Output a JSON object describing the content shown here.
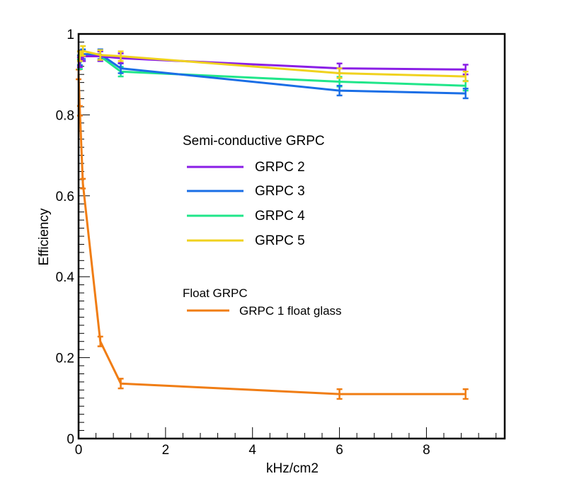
{
  "chart_data": {
    "type": "line",
    "xlabel": "kHz/cm2",
    "ylabel": "Efficiency",
    "xlim": [
      0,
      9.8
    ],
    "ylim": [
      0,
      1
    ],
    "xticks": [
      0,
      2,
      4,
      6,
      8
    ],
    "xtick_labels": [
      "0",
      "2",
      "4",
      "6",
      "8"
    ],
    "yticks": [
      0,
      0.2,
      0.4,
      0.6,
      0.8,
      1
    ],
    "ytick_labels": [
      "0",
      "0.2",
      "0.4",
      "0.6",
      "0.8",
      "1"
    ],
    "grid": false,
    "legend_groups": [
      {
        "title": "Semi-conductive GRPC",
        "entries": [
          "GRPC 2",
          "GRPC 3",
          "GRPC 4",
          "GRPC 5"
        ]
      },
      {
        "title": "Float GRPC",
        "entries": [
          "GRPC 1 float glass"
        ]
      }
    ],
    "series": [
      {
        "name": "GRPC 2",
        "color": "#8a1ee6",
        "points": [
          {
            "x": 0.03,
            "y": 0.93,
            "err": 0.012
          },
          {
            "x": 0.1,
            "y": 0.945,
            "err": 0.012
          },
          {
            "x": 0.5,
            "y": 0.945,
            "err": 0.012
          },
          {
            "x": 0.97,
            "y": 0.94,
            "err": 0.012
          },
          {
            "x": 6.0,
            "y": 0.915,
            "err": 0.012
          },
          {
            "x": 8.9,
            "y": 0.912,
            "err": 0.012
          }
        ]
      },
      {
        "name": "GRPC 3",
        "color": "#1a6ee6",
        "points": [
          {
            "x": 0.03,
            "y": 0.935,
            "err": 0.012
          },
          {
            "x": 0.1,
            "y": 0.95,
            "err": 0.012
          },
          {
            "x": 0.5,
            "y": 0.95,
            "err": 0.012
          },
          {
            "x": 0.97,
            "y": 0.915,
            "err": 0.012
          },
          {
            "x": 6.0,
            "y": 0.86,
            "err": 0.012
          },
          {
            "x": 8.9,
            "y": 0.853,
            "err": 0.012
          }
        ]
      },
      {
        "name": "GRPC 4",
        "color": "#20e68a",
        "points": [
          {
            "x": 0.03,
            "y": 0.925,
            "err": 0.012
          },
          {
            "x": 0.1,
            "y": 0.945,
            "err": 0.012
          },
          {
            "x": 0.5,
            "y": 0.945,
            "err": 0.012
          },
          {
            "x": 0.97,
            "y": 0.907,
            "err": 0.012
          },
          {
            "x": 6.0,
            "y": 0.882,
            "err": 0.012
          },
          {
            "x": 8.9,
            "y": 0.872,
            "err": 0.012
          }
        ]
      },
      {
        "name": "GRPC 5",
        "color": "#f0d21e",
        "points": [
          {
            "x": 0.03,
            "y": 0.945,
            "err": 0.012
          },
          {
            "x": 0.1,
            "y": 0.958,
            "err": 0.012
          },
          {
            "x": 0.5,
            "y": 0.948,
            "err": 0.012
          },
          {
            "x": 0.97,
            "y": 0.945,
            "err": 0.012
          },
          {
            "x": 6.0,
            "y": 0.903,
            "err": 0.012
          },
          {
            "x": 8.9,
            "y": 0.895,
            "err": 0.012
          }
        ]
      },
      {
        "name": "GRPC 1 float glass",
        "color": "#f07d14",
        "points": [
          {
            "x": 0.0,
            "y": 0.9,
            "err": 0.012
          },
          {
            "x": 0.03,
            "y": 0.81,
            "err": 0.012
          },
          {
            "x": 0.1,
            "y": 0.63,
            "err": 0.012
          },
          {
            "x": 0.5,
            "y": 0.24,
            "err": 0.012
          },
          {
            "x": 0.97,
            "y": 0.136,
            "err": 0.012
          },
          {
            "x": 6.0,
            "y": 0.11,
            "err": 0.012
          },
          {
            "x": 8.9,
            "y": 0.11,
            "err": 0.012
          }
        ]
      }
    ]
  }
}
